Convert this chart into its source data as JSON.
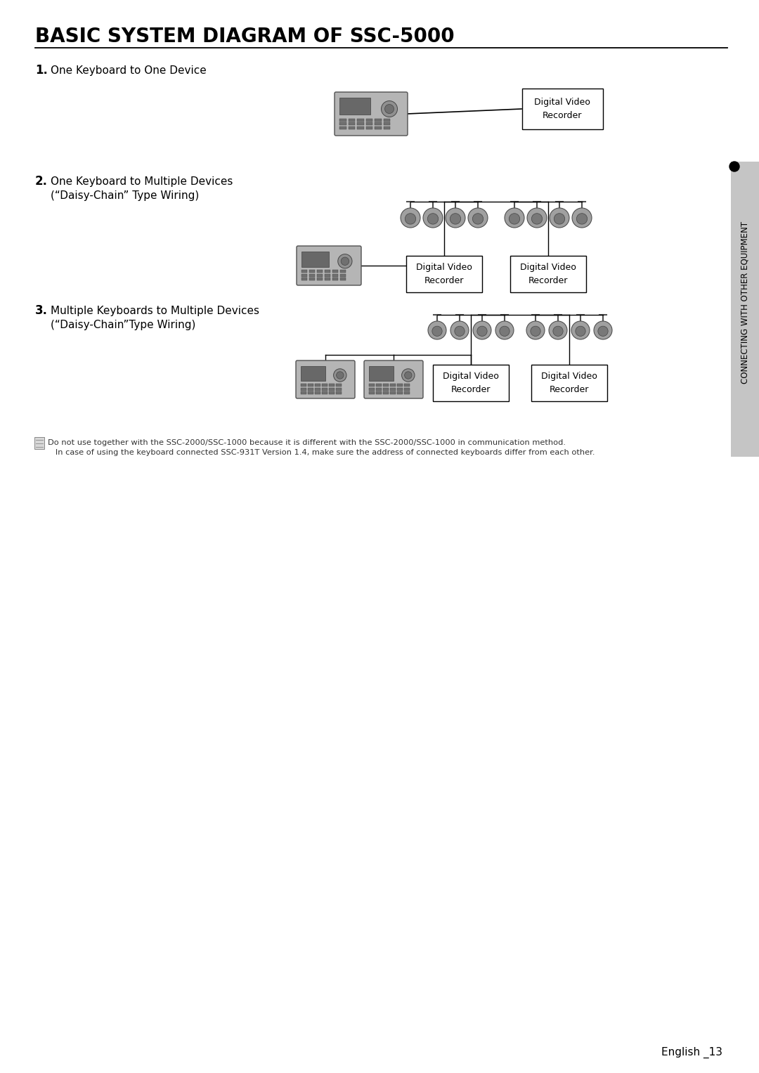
{
  "title": "BASIC SYSTEM DIAGRAM OF SSC-5000",
  "section1_label": "1.",
  "section1_text": "One Keyboard to One Device",
  "section2_label": "2.",
  "section2_text_line1": "One Keyboard to Multiple Devices",
  "section2_text_line2": "(“Daisy-Chain” Type Wiring)",
  "section3_label": "3.",
  "section3_text_line1": "Multiple Keyboards to Multiple Devices",
  "section3_text_line2": "(“Daisy-Chain”Type Wiring)",
  "dvr_label": "Digital Video\nRecorder",
  "note_line1": "Do not use together with the SSC-2000/SSC-1000 because it is different with the SSC-2000/SSC-1000 in communication method.",
  "note_line2": "   In case of using the keyboard connected SSC-931T Version 1.4, make sure the address of connected keyboards differ from each other.",
  "side_text": "CONNECTING WITH OTHER EQUIPMENT",
  "page_text": "English _13",
  "bg_color": "#ffffff",
  "line_color": "#000000",
  "side_bar_color": "#c8c8c8"
}
